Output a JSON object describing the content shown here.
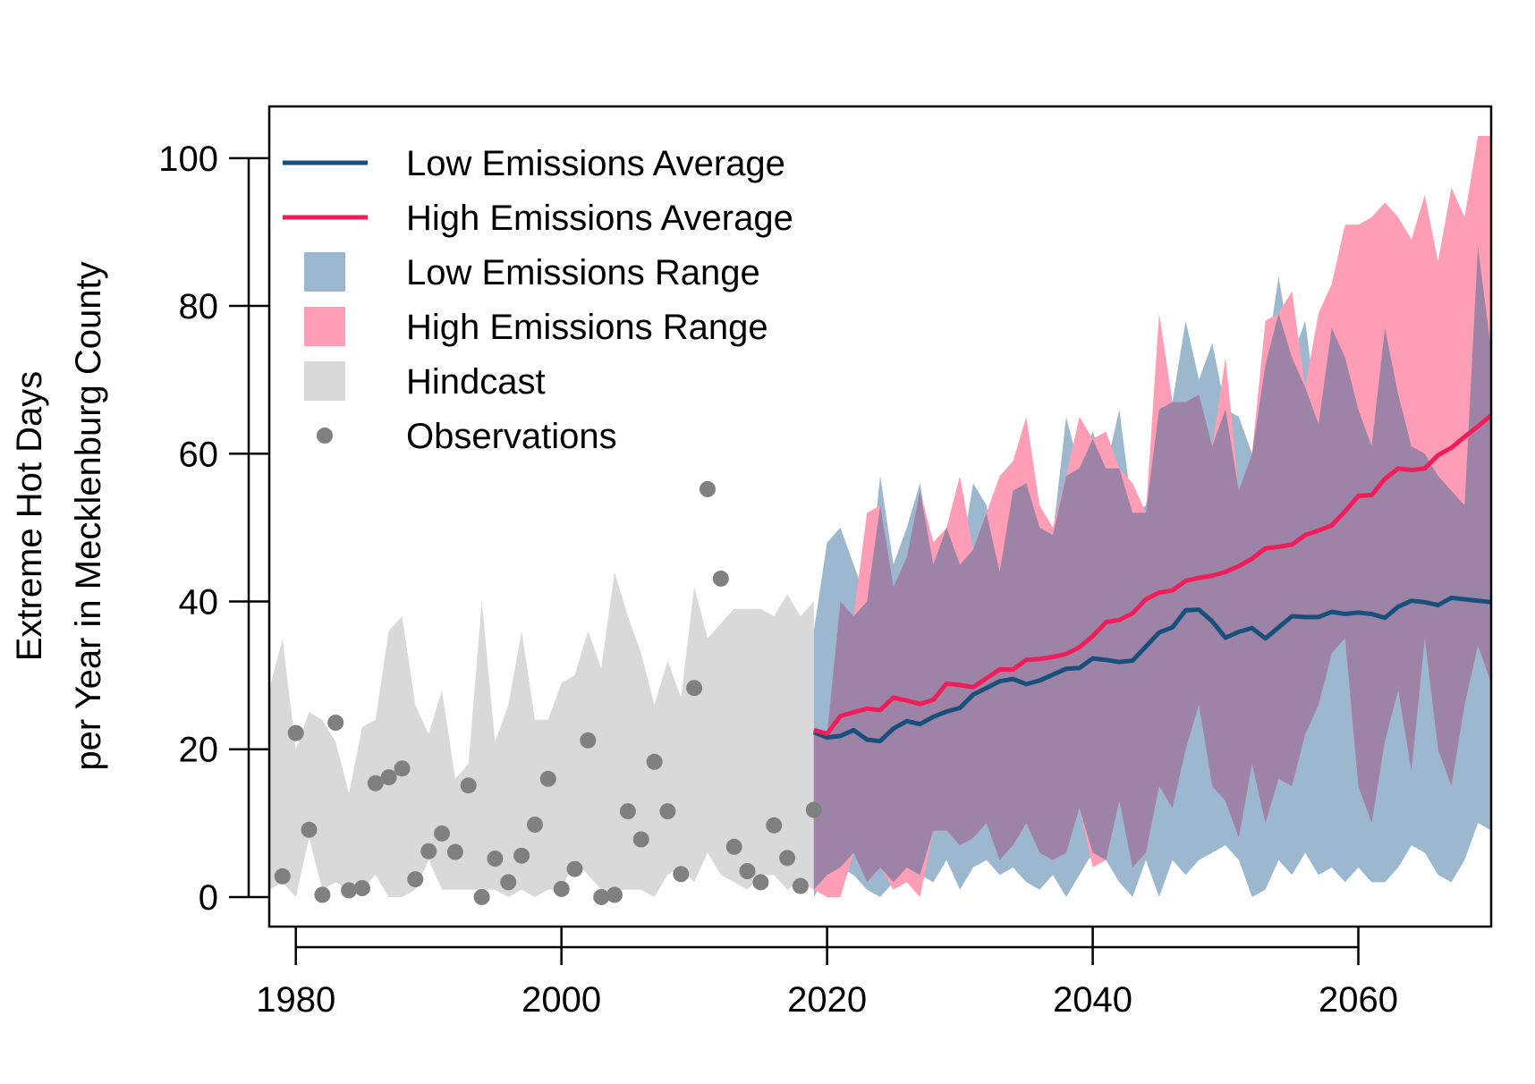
{
  "chart_data": {
    "type": "line",
    "title": "",
    "xlabel": "",
    "ylabel_line1": "Extreme Hot Days",
    "ylabel_line2": "per Year in Mecklenburg County",
    "xlim": [
      1978,
      2070
    ],
    "ylim": [
      -4,
      107
    ],
    "x_ticks": [
      1980,
      2000,
      2020,
      2040,
      2060
    ],
    "y_ticks": [
      0,
      20,
      40,
      60,
      80,
      100
    ],
    "grid": false,
    "legend_position": "top-left",
    "colors": {
      "low_line": "#17507d",
      "high_line": "#ef1e5a",
      "low_band": "#9bb8ce",
      "high_band": "#fd9db6",
      "overlap_band": "#9d84a6",
      "hindcast": "#d9d9d9",
      "observations": "#808080"
    },
    "legend": [
      {
        "key": "low_avg",
        "label": "Low Emissions Average",
        "symbol": "line",
        "color": "#17507d"
      },
      {
        "key": "high_avg",
        "label": "High Emissions Average",
        "symbol": "line",
        "color": "#ef1e5a"
      },
      {
        "key": "low_range",
        "label": "Low Emissions Range",
        "symbol": "box",
        "color": "#9bb8ce"
      },
      {
        "key": "high_range",
        "label": "High Emissions Range",
        "symbol": "box",
        "color": "#fd9db6"
      },
      {
        "key": "hindcast",
        "label": "Hindcast",
        "symbol": "box",
        "color": "#d9d9d9"
      },
      {
        "key": "observations",
        "label": "Observations",
        "symbol": "point",
        "color": "#808080"
      }
    ],
    "hindcast": {
      "x": [
        1978,
        1979,
        1980,
        1981,
        1982,
        1983,
        1984,
        1985,
        1986,
        1987,
        1988,
        1989,
        1990,
        1991,
        1992,
        1993,
        1994,
        1995,
        1996,
        1997,
        1998,
        1999,
        2000,
        2001,
        2002,
        2003,
        2004,
        2005,
        2006,
        2007,
        2008,
        2009,
        2010,
        2011,
        2012,
        2013,
        2014,
        2015,
        2016,
        2017,
        2018,
        2019
      ],
      "lower": [
        1,
        2,
        0,
        8,
        1,
        2,
        1,
        1,
        3,
        0,
        0,
        1,
        5,
        1,
        1,
        1,
        1,
        1,
        0,
        1,
        0,
        1,
        1,
        5,
        3,
        1,
        1,
        1,
        1,
        0,
        3,
        4,
        2,
        6,
        3,
        2,
        1,
        3,
        3,
        1,
        2,
        1
      ],
      "upper": [
        28,
        35,
        20,
        25,
        24,
        21,
        14,
        23,
        24,
        36,
        38,
        26,
        22,
        28,
        16,
        18,
        40,
        21,
        26,
        36,
        24,
        24,
        29,
        30,
        36,
        31,
        44,
        38,
        33,
        26,
        32,
        27,
        42,
        35,
        37,
        39,
        39,
        39,
        38,
        41,
        38,
        40
      ]
    },
    "low_range": {
      "x": [
        2019,
        2020,
        2021,
        2022,
        2023,
        2024,
        2025,
        2026,
        2027,
        2028,
        2029,
        2030,
        2031,
        2032,
        2033,
        2034,
        2035,
        2036,
        2037,
        2038,
        2039,
        2040,
        2041,
        2042,
        2043,
        2044,
        2045,
        2046,
        2047,
        2048,
        2049,
        2050,
        2051,
        2052,
        2053,
        2054,
        2055,
        2056,
        2057,
        2058,
        2059,
        2060,
        2061,
        2062,
        2063,
        2064,
        2065,
        2066,
        2067,
        2068,
        2069,
        2070
      ],
      "lower": [
        0,
        3,
        4,
        3,
        1,
        0,
        2,
        4,
        3,
        2,
        5,
        1,
        4,
        5,
        3,
        4,
        2,
        1,
        3,
        0,
        3,
        6,
        5,
        2,
        0,
        5,
        0,
        5,
        3,
        5,
        6,
        7,
        5,
        0,
        1,
        5,
        3,
        6,
        3,
        4,
        2,
        4,
        2,
        2,
        4,
        7,
        6,
        3,
        2,
        5,
        10,
        9
      ],
      "upper": [
        36,
        48,
        50,
        45,
        40,
        57,
        45,
        50,
        56,
        45,
        50,
        45,
        56,
        53,
        44,
        55,
        56,
        50,
        49,
        65,
        58,
        63,
        58,
        66,
        52,
        53,
        66,
        67,
        78,
        70,
        75,
        66,
        65,
        60,
        72,
        84,
        73,
        78,
        64,
        77,
        73,
        66,
        61,
        77,
        68,
        61,
        60,
        57,
        55,
        53,
        88,
        74
      ]
    },
    "high_range": {
      "x": [
        2019,
        2020,
        2021,
        2022,
        2023,
        2024,
        2025,
        2026,
        2027,
        2028,
        2029,
        2030,
        2031,
        2032,
        2033,
        2034,
        2035,
        2036,
        2037,
        2038,
        2039,
        2040,
        2041,
        2042,
        2043,
        2044,
        2045,
        2046,
        2047,
        2048,
        2049,
        2050,
        2051,
        2052,
        2053,
        2054,
        2055,
        2056,
        2057,
        2058,
        2059,
        2060,
        2061,
        2062,
        2063,
        2064,
        2065,
        2066,
        2067,
        2068,
        2069,
        2070
      ],
      "lower": [
        1,
        0,
        0,
        6,
        2,
        4,
        1,
        2,
        0,
        9,
        9,
        7,
        8,
        10,
        5,
        7,
        10,
        6,
        5,
        6,
        12,
        4,
        5,
        13,
        4,
        6,
        15,
        12,
        20,
        26,
        15,
        13,
        8,
        18,
        10,
        16,
        15,
        22,
        26,
        33,
        35,
        15,
        10,
        21,
        28,
        17,
        35,
        20,
        15,
        26,
        34,
        29
      ],
      "upper": [
        22,
        22,
        40,
        38,
        52,
        53,
        42,
        46,
        55,
        48,
        50,
        57,
        47,
        52,
        57,
        59,
        65,
        53,
        50,
        57,
        65,
        62,
        63,
        58,
        56,
        52,
        79,
        67,
        67,
        68,
        61,
        73,
        55,
        60,
        78,
        79,
        82,
        69,
        79,
        83,
        91,
        91,
        92,
        94,
        92,
        89,
        95,
        86,
        96,
        92,
        103,
        103
      ]
    },
    "low_avg": {
      "x": [
        2019,
        2020,
        2021,
        2022,
        2023,
        2024,
        2025,
        2026,
        2027,
        2028,
        2029,
        2030,
        2031,
        2032,
        2033,
        2034,
        2035,
        2036,
        2037,
        2038,
        2039,
        2040,
        2041,
        2042,
        2043,
        2044,
        2045,
        2046,
        2047,
        2048,
        2049,
        2050,
        2051,
        2052,
        2053,
        2054,
        2055,
        2056,
        2057,
        2058,
        2059,
        2060,
        2061,
        2062,
        2063,
        2064,
        2065,
        2066,
        2067,
        2068,
        2069,
        2070
      ],
      "y": [
        22.3,
        21.6,
        21.8,
        22.6,
        21.3,
        21.1,
        22.8,
        23.8,
        23.4,
        24.4,
        25.1,
        25.6,
        27.4,
        28.3,
        29.2,
        29.5,
        28.8,
        29.3,
        30.1,
        30.9,
        31.0,
        32.3,
        32.1,
        31.8,
        32.0,
        33.9,
        35.8,
        36.5,
        38.8,
        38.9,
        37.3,
        35.1,
        35.9,
        36.4,
        35.0,
        36.5,
        38.0,
        37.9,
        37.9,
        38.6,
        38.3,
        38.5,
        38.3,
        37.8,
        39.3,
        40.1,
        39.9,
        39.5,
        40.5,
        40.3,
        40.1,
        39.9
      ]
    },
    "high_avg": {
      "x": [
        2019,
        2020,
        2021,
        2022,
        2023,
        2024,
        2025,
        2026,
        2027,
        2028,
        2029,
        2030,
        2031,
        2032,
        2033,
        2034,
        2035,
        2036,
        2037,
        2038,
        2039,
        2040,
        2041,
        2042,
        2043,
        2044,
        2045,
        2046,
        2047,
        2048,
        2049,
        2050,
        2051,
        2052,
        2053,
        2054,
        2055,
        2056,
        2057,
        2058,
        2059,
        2060,
        2061,
        2062,
        2063,
        2064,
        2065,
        2066,
        2067,
        2068,
        2069,
        2070
      ],
      "y": [
        22.6,
        22.1,
        24.5,
        25.0,
        25.5,
        25.3,
        27.0,
        26.6,
        26.1,
        26.7,
        28.9,
        28.7,
        28.4,
        29.6,
        30.8,
        30.8,
        32.1,
        32.2,
        32.5,
        32.9,
        33.8,
        35.3,
        37.2,
        37.5,
        38.4,
        40.3,
        41.2,
        41.5,
        42.8,
        43.2,
        43.5,
        44.0,
        44.8,
        45.8,
        47.2,
        47.4,
        47.7,
        49.0,
        49.6,
        50.3,
        52.2,
        54.3,
        54.4,
        56.6,
        58.0,
        57.8,
        58.0,
        59.8,
        60.8,
        62.3,
        63.7,
        65.2
      ]
    },
    "observations": {
      "x": [
        1979,
        1980,
        1981,
        1982,
        1983,
        1984,
        1985,
        1986,
        1987,
        1988,
        1989,
        1990,
        1991,
        1992,
        1993,
        1994,
        1995,
        1996,
        1997,
        1998,
        1999,
        2000,
        2001,
        2002,
        2003,
        2004,
        2005,
        2006,
        2007,
        2008,
        2009,
        2010,
        2011,
        2012,
        2013,
        2014,
        2015,
        2016,
        2017,
        2018,
        2019
      ],
      "y": [
        2.8,
        22.2,
        9.1,
        0.3,
        23.6,
        0.9,
        1.2,
        15.4,
        16.2,
        17.4,
        2.4,
        6.2,
        8.6,
        6.1,
        15.1,
        0.0,
        5.2,
        2.0,
        5.6,
        9.8,
        16.0,
        1.1,
        3.8,
        21.2,
        0.0,
        0.3,
        11.6,
        7.8,
        18.3,
        11.6,
        3.1,
        28.3,
        55.2,
        43.1,
        6.8,
        3.5,
        2.0,
        9.7,
        5.3,
        1.5,
        11.8
      ]
    }
  }
}
